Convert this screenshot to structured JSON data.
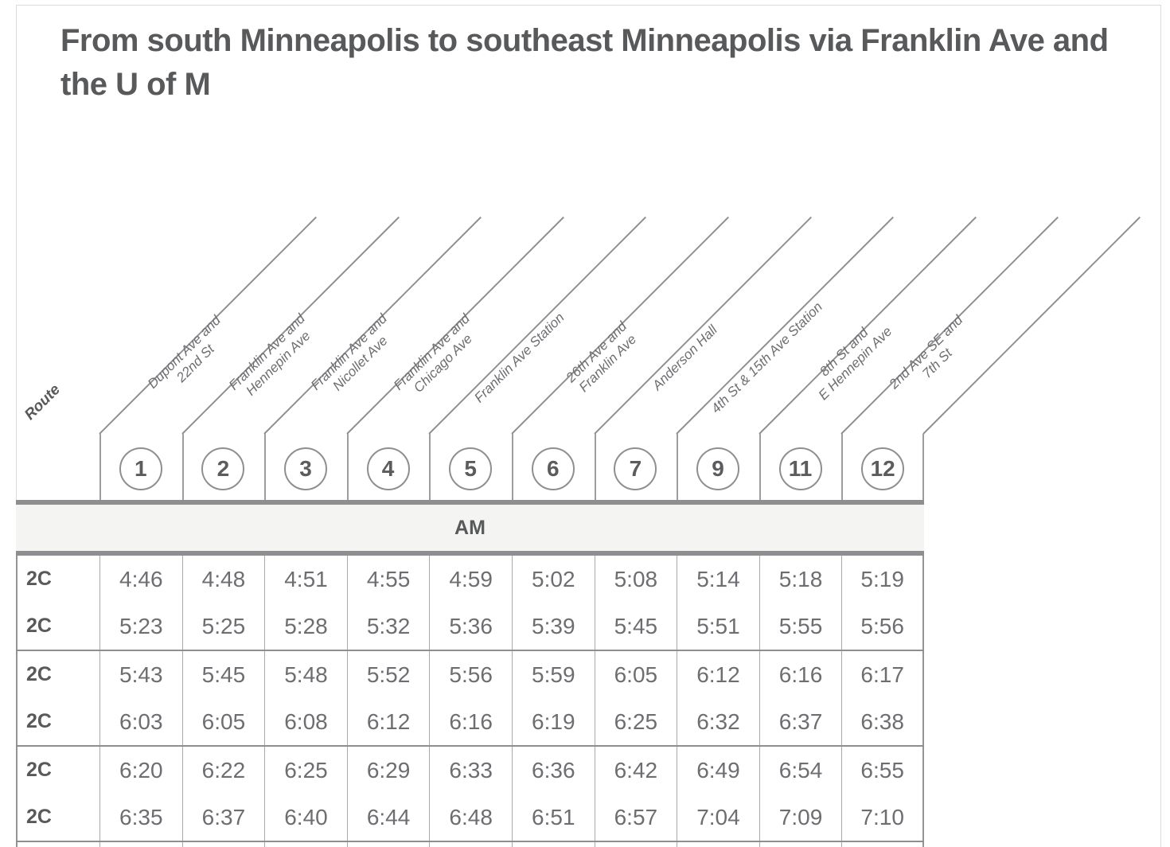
{
  "title": "From south Minneapolis to southeast Minneapolis via Franklin Ave and the U of M",
  "colors": {
    "text_dark": "#58595b",
    "text_medium": "#6d6e71",
    "line_light": "#a7a9ac",
    "line_heavy": "#8d8e90",
    "band_bg": "#f4f4f2",
    "card_border": "#dadbdc"
  },
  "table": {
    "route_header": "Route",
    "period_label": "AM",
    "stops": [
      {
        "number": "1",
        "name_line1": "Dupont Ave and",
        "name_line2": "22nd St"
      },
      {
        "number": "2",
        "name_line1": "Franklin Ave and",
        "name_line2": "Hennepin Ave"
      },
      {
        "number": "3",
        "name_line1": "Franklin Ave and",
        "name_line2": "Nicollet Ave"
      },
      {
        "number": "4",
        "name_line1": "Franklin Ave and",
        "name_line2": "Chicago Ave"
      },
      {
        "number": "5",
        "name_line1": "Franklin Ave Station",
        "name_line2": ""
      },
      {
        "number": "6",
        "name_line1": "26th Ave and",
        "name_line2": "Franklin Ave"
      },
      {
        "number": "7",
        "name_line1": "Anderson Hall",
        "name_line2": ""
      },
      {
        "number": "9",
        "name_line1": "4th St & 15th Ave Station",
        "name_line2": ""
      },
      {
        "number": "11",
        "name_line1": "8th St and",
        "name_line2": "E Hennepin Ave"
      },
      {
        "number": "12",
        "name_line1": "2nd Ave SE and",
        "name_line2": "7th St"
      }
    ],
    "groups": [
      {
        "rows": [
          {
            "route": "2C",
            "times": [
              "4:46",
              "4:48",
              "4:51",
              "4:55",
              "4:59",
              "5:02",
              "5:08",
              "5:14",
              "5:18",
              "5:19"
            ]
          },
          {
            "route": "2C",
            "times": [
              "5:23",
              "5:25",
              "5:28",
              "5:32",
              "5:36",
              "5:39",
              "5:45",
              "5:51",
              "5:55",
              "5:56"
            ]
          }
        ]
      },
      {
        "rows": [
          {
            "route": "2C",
            "times": [
              "5:43",
              "5:45",
              "5:48",
              "5:52",
              "5:56",
              "5:59",
              "6:05",
              "6:12",
              "6:16",
              "6:17"
            ]
          },
          {
            "route": "2C",
            "times": [
              "6:03",
              "6:05",
              "6:08",
              "6:12",
              "6:16",
              "6:19",
              "6:25",
              "6:32",
              "6:37",
              "6:38"
            ]
          }
        ]
      },
      {
        "rows": [
          {
            "route": "2C",
            "times": [
              "6:20",
              "6:22",
              "6:25",
              "6:29",
              "6:33",
              "6:36",
              "6:42",
              "6:49",
              "6:54",
              "6:55"
            ]
          },
          {
            "route": "2C",
            "times": [
              "6:35",
              "6:37",
              "6:40",
              "6:44",
              "6:48",
              "6:51",
              "6:57",
              "7:04",
              "7:09",
              "7:10"
            ]
          }
        ]
      }
    ]
  }
}
